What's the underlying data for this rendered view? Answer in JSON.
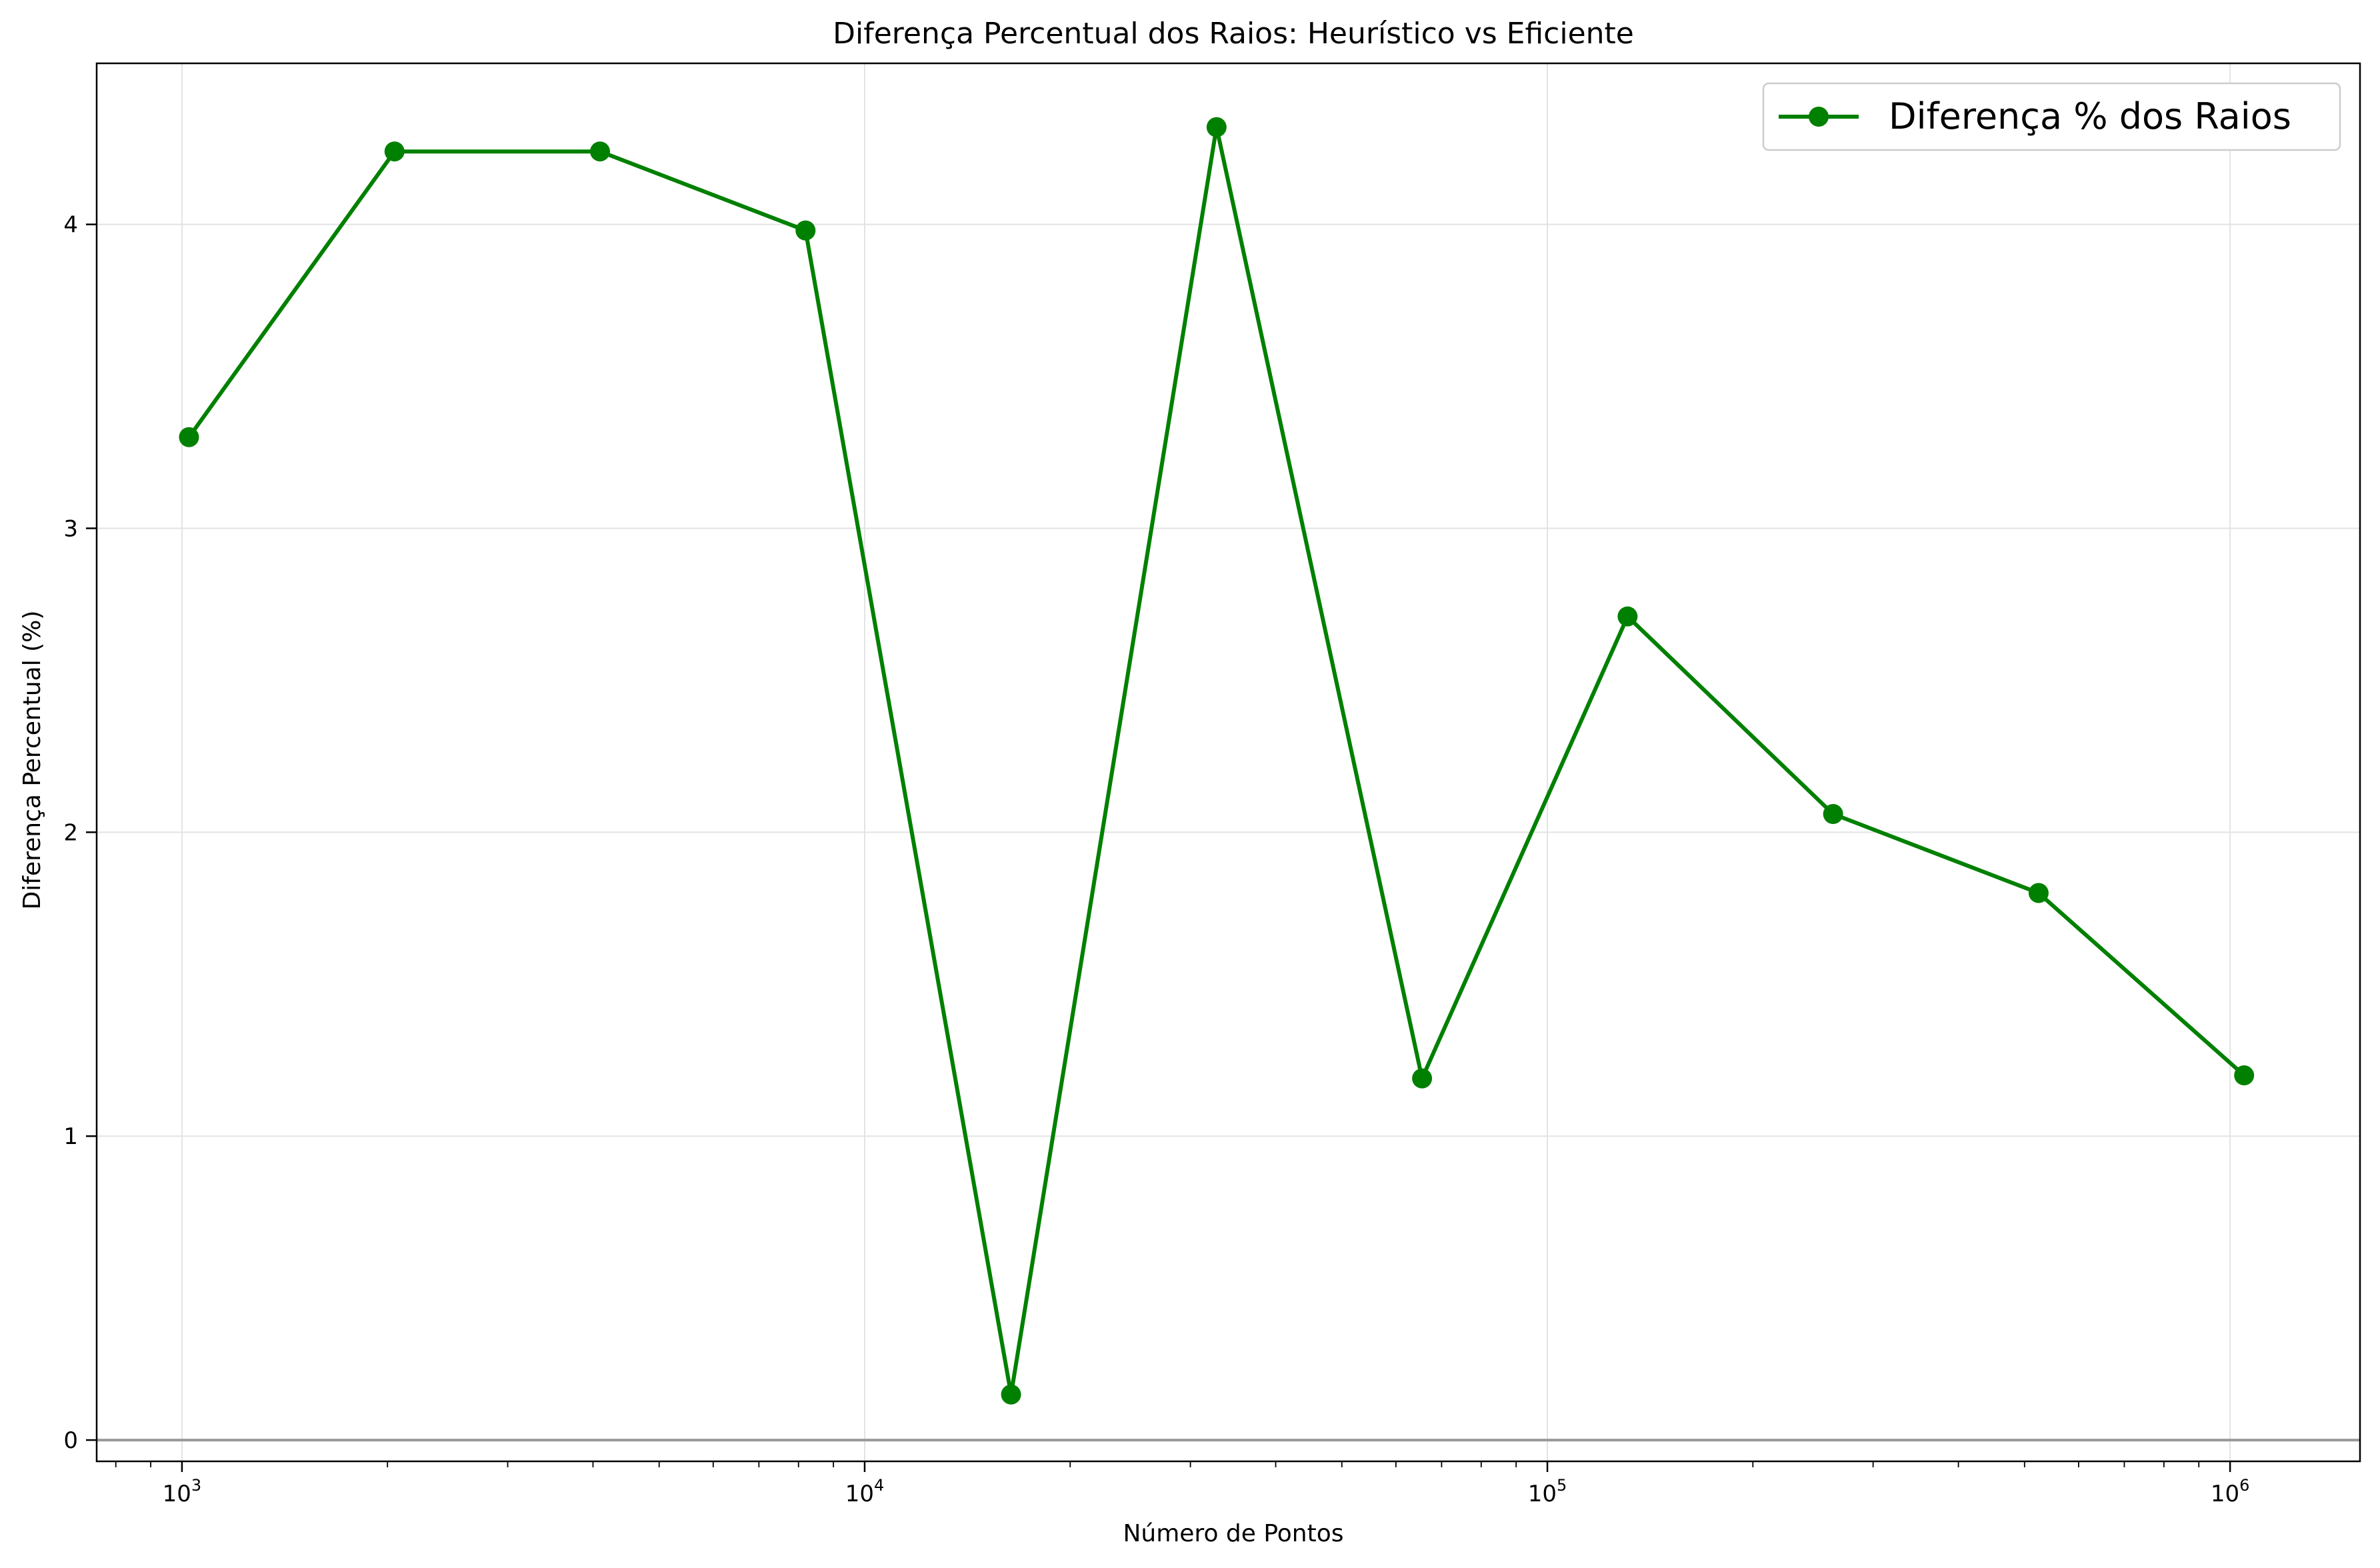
{
  "chart_data": {
    "type": "line",
    "title": "Diferença Percentual dos Raios: Heurístico vs Eficiente",
    "xlabel": "Número de Pontos",
    "ylabel": "Diferença Percentual (%)",
    "x_scale": "log",
    "xlim": [
      750,
      1550000
    ],
    "ylim": [
      -0.07,
      4.53
    ],
    "xticks": [
      {
        "value": 1000,
        "label": "10³"
      },
      {
        "value": 10000,
        "label": "10⁴"
      },
      {
        "value": 100000,
        "label": "10⁵"
      },
      {
        "value": 1000000,
        "label": "10⁶"
      }
    ],
    "yticks": [
      {
        "value": 0,
        "label": "0"
      },
      {
        "value": 1,
        "label": "1"
      },
      {
        "value": 2,
        "label": "2"
      },
      {
        "value": 3,
        "label": "3"
      },
      {
        "value": 4,
        "label": "4"
      }
    ],
    "grid": true,
    "reference_line_y": 0,
    "legend": {
      "position": "top-right"
    },
    "series": [
      {
        "name": "Diferença % dos Raios",
        "color": "#008000",
        "marker": "circle",
        "x": [
          1024,
          2048,
          4096,
          8192,
          16384,
          32768,
          65536,
          131072,
          262144,
          524288,
          1048576
        ],
        "y": [
          3.3,
          4.24,
          4.24,
          3.98,
          0.15,
          4.32,
          1.19,
          2.71,
          2.06,
          1.8,
          1.2
        ]
      }
    ]
  }
}
